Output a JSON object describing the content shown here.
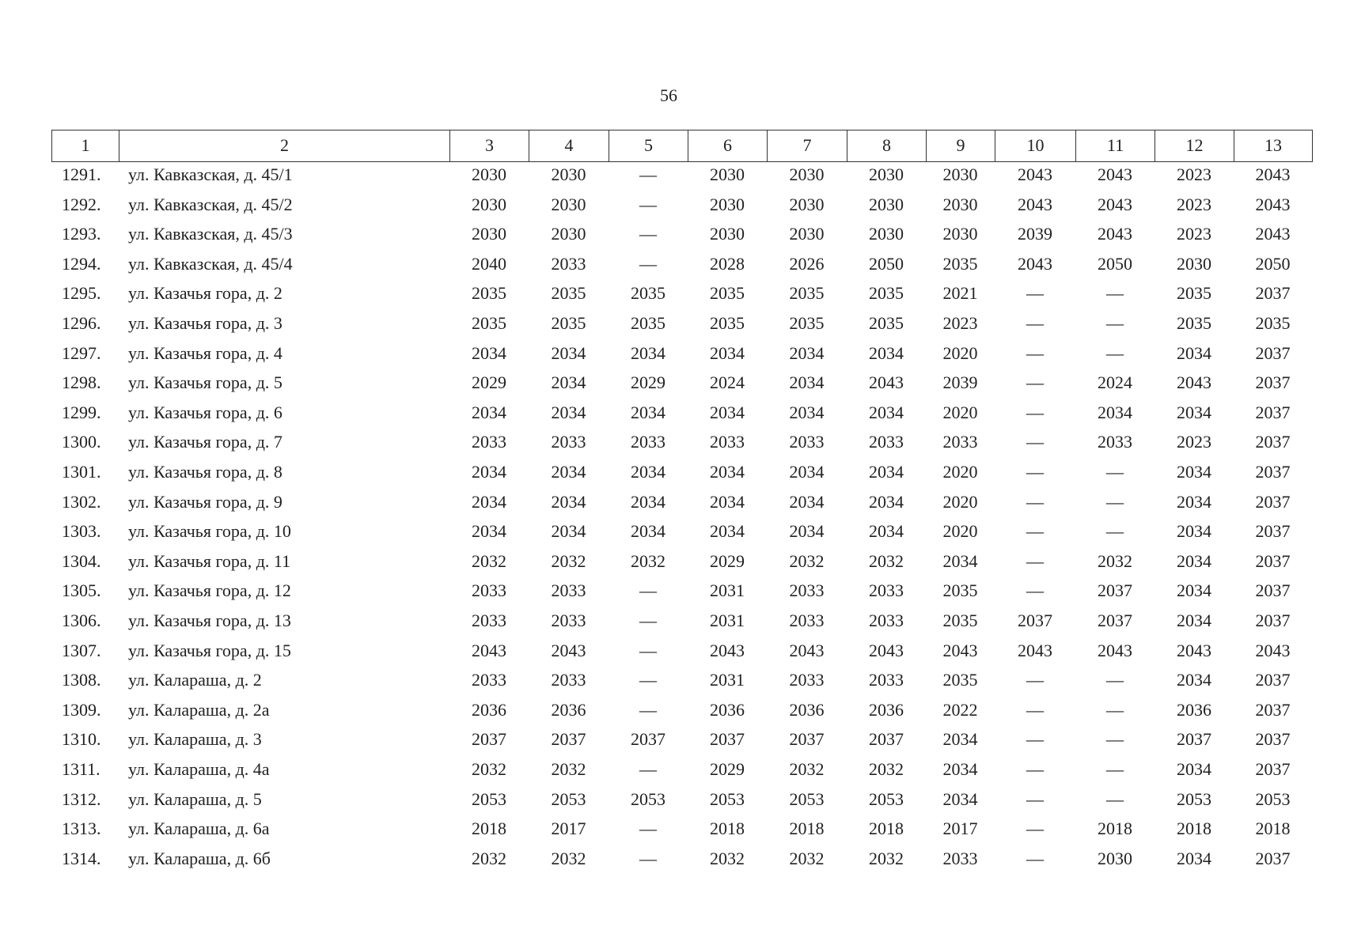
{
  "page_number": "56",
  "table": {
    "header": [
      "1",
      "2",
      "3",
      "4",
      "5",
      "6",
      "7",
      "8",
      "9",
      "10",
      "11",
      "12",
      "13"
    ],
    "rows": [
      [
        "1291.",
        "ул. Кавказская, д. 45/1",
        "2030",
        "2030",
        "—",
        "2030",
        "2030",
        "2030",
        "2030",
        "2043",
        "2043",
        "2023",
        "2043"
      ],
      [
        "1292.",
        "ул. Кавказская, д. 45/2",
        "2030",
        "2030",
        "—",
        "2030",
        "2030",
        "2030",
        "2030",
        "2043",
        "2043",
        "2023",
        "2043"
      ],
      [
        "1293.",
        "ул. Кавказская, д. 45/3",
        "2030",
        "2030",
        "—",
        "2030",
        "2030",
        "2030",
        "2030",
        "2039",
        "2043",
        "2023",
        "2043"
      ],
      [
        "1294.",
        "ул. Кавказская, д. 45/4",
        "2040",
        "2033",
        "—",
        "2028",
        "2026",
        "2050",
        "2035",
        "2043",
        "2050",
        "2030",
        "2050"
      ],
      [
        "1295.",
        "ул. Казачья гора, д. 2",
        "2035",
        "2035",
        "2035",
        "2035",
        "2035",
        "2035",
        "2021",
        "—",
        "—",
        "2035",
        "2037"
      ],
      [
        "1296.",
        "ул. Казачья гора, д. 3",
        "2035",
        "2035",
        "2035",
        "2035",
        "2035",
        "2035",
        "2023",
        "—",
        "—",
        "2035",
        "2035"
      ],
      [
        "1297.",
        "ул. Казачья гора, д. 4",
        "2034",
        "2034",
        "2034",
        "2034",
        "2034",
        "2034",
        "2020",
        "—",
        "—",
        "2034",
        "2037"
      ],
      [
        "1298.",
        "ул. Казачья гора, д. 5",
        "2029",
        "2034",
        "2029",
        "2024",
        "2034",
        "2043",
        "2039",
        "—",
        "2024",
        "2043",
        "2037"
      ],
      [
        "1299.",
        "ул. Казачья гора, д. 6",
        "2034",
        "2034",
        "2034",
        "2034",
        "2034",
        "2034",
        "2020",
        "—",
        "2034",
        "2034",
        "2037"
      ],
      [
        "1300.",
        "ул. Казачья гора, д. 7",
        "2033",
        "2033",
        "2033",
        "2033",
        "2033",
        "2033",
        "2033",
        "—",
        "2033",
        "2023",
        "2037"
      ],
      [
        "1301.",
        "ул. Казачья гора, д. 8",
        "2034",
        "2034",
        "2034",
        "2034",
        "2034",
        "2034",
        "2020",
        "—",
        "—",
        "2034",
        "2037"
      ],
      [
        "1302.",
        "ул. Казачья гора, д. 9",
        "2034",
        "2034",
        "2034",
        "2034",
        "2034",
        "2034",
        "2020",
        "—",
        "—",
        "2034",
        "2037"
      ],
      [
        "1303.",
        "ул. Казачья гора, д. 10",
        "2034",
        "2034",
        "2034",
        "2034",
        "2034",
        "2034",
        "2020",
        "—",
        "—",
        "2034",
        "2037"
      ],
      [
        "1304.",
        "ул. Казачья гора, д. 11",
        "2032",
        "2032",
        "2032",
        "2029",
        "2032",
        "2032",
        "2034",
        "—",
        "2032",
        "2034",
        "2037"
      ],
      [
        "1305.",
        "ул. Казачья гора, д. 12",
        "2033",
        "2033",
        "—",
        "2031",
        "2033",
        "2033",
        "2035",
        "—",
        "2037",
        "2034",
        "2037"
      ],
      [
        "1306.",
        "ул. Казачья гора, д. 13",
        "2033",
        "2033",
        "—",
        "2031",
        "2033",
        "2033",
        "2035",
        "2037",
        "2037",
        "2034",
        "2037"
      ],
      [
        "1307.",
        "ул. Казачья гора, д. 15",
        "2043",
        "2043",
        "—",
        "2043",
        "2043",
        "2043",
        "2043",
        "2043",
        "2043",
        "2043",
        "2043"
      ],
      [
        "1308.",
        "ул. Калараша, д. 2",
        "2033",
        "2033",
        "—",
        "2031",
        "2033",
        "2033",
        "2035",
        "—",
        "—",
        "2034",
        "2037"
      ],
      [
        "1309.",
        "ул. Калараша, д. 2а",
        "2036",
        "2036",
        "—",
        "2036",
        "2036",
        "2036",
        "2022",
        "—",
        "—",
        "2036",
        "2037"
      ],
      [
        "1310.",
        "ул. Калараша, д. 3",
        "2037",
        "2037",
        "2037",
        "2037",
        "2037",
        "2037",
        "2034",
        "—",
        "—",
        "2037",
        "2037"
      ],
      [
        "1311.",
        "ул. Калараша, д. 4а",
        "2032",
        "2032",
        "—",
        "2029",
        "2032",
        "2032",
        "2034",
        "—",
        "—",
        "2034",
        "2037"
      ],
      [
        "1312.",
        "ул. Калараша, д. 5",
        "2053",
        "2053",
        "2053",
        "2053",
        "2053",
        "2053",
        "2034",
        "—",
        "—",
        "2053",
        "2053"
      ],
      [
        "1313.",
        "ул. Калараша, д. 6а",
        "2018",
        "2017",
        "—",
        "2018",
        "2018",
        "2018",
        "2017",
        "—",
        "2018",
        "2018",
        "2018"
      ],
      [
        "1314.",
        "ул. Калараша, д. 6б",
        "2032",
        "2032",
        "—",
        "2032",
        "2032",
        "2032",
        "2033",
        "—",
        "2030",
        "2034",
        "2037"
      ]
    ]
  }
}
